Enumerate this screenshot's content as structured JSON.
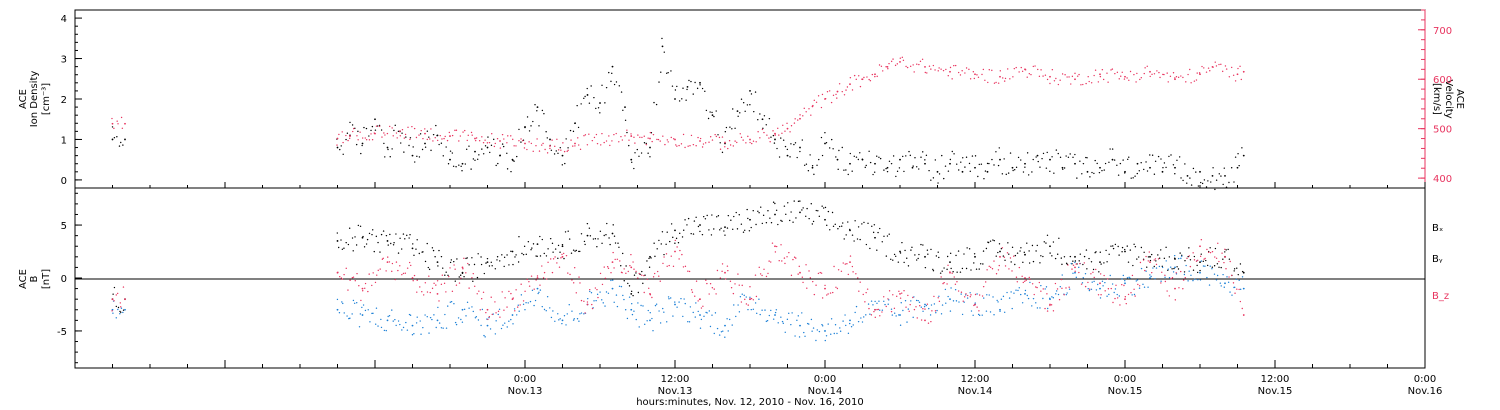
{
  "chart_data": [
    {
      "type": "scatter",
      "panel": "top",
      "ylabel": [
        "ACE",
        "Ion Density",
        "[cm⁻³]"
      ],
      "y2label": [
        "ACE",
        "Velocity",
        "[km/s]"
      ],
      "ylim": [
        -0.2,
        4.2
      ],
      "yticks": [
        "0",
        "1",
        "2",
        "3",
        "4"
      ],
      "y2lim": [
        380,
        740
      ],
      "y2ticks": [
        "400",
        "500",
        "600",
        "700"
      ],
      "colors": {
        "density": "#000000",
        "velocity": "#e8345f"
      },
      "series": [
        {
          "key": "density",
          "color": "#000000",
          "x": [
            -33,
            -32,
            -15,
            -14,
            -13,
            -12,
            -11,
            -10,
            -9,
            -8,
            -7,
            -6,
            -5,
            -4,
            -3,
            -2,
            -1,
            0,
            1,
            2,
            3,
            4,
            5,
            6,
            7,
            8,
            8.5,
            10,
            11,
            12,
            13,
            14,
            15,
            16,
            17,
            18,
            19,
            20,
            21,
            22,
            23,
            24,
            25,
            26,
            27,
            28,
            29,
            30,
            31,
            32,
            33,
            34,
            35,
            36,
            37,
            38,
            39,
            40,
            41,
            42,
            43,
            44,
            45,
            46,
            47,
            48,
            49,
            50,
            51,
            52,
            53,
            54,
            55,
            56,
            57,
            57.5
          ],
          "y": [
            1.0,
            1.0,
            0.8,
            1.1,
            0.9,
            1.5,
            0.8,
            1.2,
            0.6,
            0.9,
            1.1,
            0.5,
            0.4,
            0.7,
            0.8,
            0.6,
            0.5,
            1.3,
            1.8,
            1.0,
            0.6,
            1.4,
            2.1,
            1.9,
            2.8,
            1.8,
            0.5,
            0.8,
            3.3,
            2.0,
            2.3,
            2.4,
            1.6,
            0.9,
            1.7,
            2.2,
            1.5,
            1.0,
            0.6,
            0.8,
            0.3,
            0.9,
            0.5,
            0.4,
            0.5,
            0.4,
            0.3,
            0.5,
            0.3,
            0.4,
            0.2,
            0.4,
            0.2,
            0.3,
            0.2,
            0.5,
            0.3,
            0.4,
            0.6,
            0.5,
            0.3,
            0.4,
            0.2,
            0.3,
            0.5,
            0.2,
            0.4,
            0.3,
            0.2,
            0.3,
            0.1,
            0.2,
            0.1,
            0.1,
            0.3,
            0.6
          ]
        },
        {
          "key": "velocity",
          "color": "#e8345f",
          "x": [
            -33,
            -32,
            -15,
            -14,
            -12,
            -10,
            -8,
            -6,
            -4,
            -2,
            0,
            2,
            4,
            8.5,
            10,
            12,
            14,
            16,
            18,
            20,
            21,
            22,
            23,
            24,
            25,
            26,
            27,
            28,
            29,
            30,
            32,
            34,
            36,
            38,
            40,
            42,
            44,
            46,
            48,
            50,
            52,
            54,
            55,
            57,
            57.5
          ],
          "y": [
            510,
            510,
            480,
            485,
            490,
            495,
            490,
            485,
            480,
            475,
            470,
            465,
            470,
            485,
            480,
            478,
            475,
            472,
            478,
            490,
            500,
            520,
            545,
            560,
            575,
            590,
            600,
            610,
            625,
            635,
            625,
            615,
            610,
            605,
            620,
            605,
            600,
            610,
            605,
            615,
            600,
            610,
            625,
            610,
            615
          ]
        }
      ]
    },
    {
      "type": "scatter",
      "panel": "bottom",
      "ylabel": [
        "ACE",
        "B",
        "[nT]"
      ],
      "ylim": [
        -8.5,
        8.5
      ],
      "yticks": [
        "-5",
        "0",
        "5"
      ],
      "legend": [
        "Bₓ",
        "Bᵧ",
        "B_z"
      ],
      "legend_position": "right",
      "colors": {
        "bx": "#000000",
        "by": "#1a7fd6",
        "bz": "#e8345f"
      },
      "series": [
        {
          "key": "bx",
          "color": "#000000",
          "x": [
            -33,
            -32,
            -15,
            -13,
            -11,
            -9,
            -7,
            -5,
            -3,
            -1,
            1,
            3,
            5,
            7,
            8.5,
            10,
            12,
            14,
            16,
            18,
            20,
            22,
            24,
            26,
            28,
            30,
            32,
            34,
            36,
            38,
            40,
            42,
            44,
            46,
            48,
            50,
            52,
            54,
            56,
            57.5
          ],
          "y": [
            -2,
            -2,
            3.5,
            3.8,
            3.5,
            2.8,
            1.5,
            0.5,
            1.5,
            2.5,
            3.2,
            3.0,
            4.0,
            4.2,
            -1.5,
            2.0,
            4.5,
            5.0,
            4.8,
            5.5,
            6.0,
            6.2,
            5.5,
            4.5,
            3.8,
            2.5,
            2.0,
            1.5,
            2.0,
            2.5,
            2.2,
            3.0,
            2.0,
            1.5,
            2.5,
            2.0,
            1.8,
            1.5,
            2.0,
            0.5
          ]
        },
        {
          "key": "by",
          "color": "#1a7fd6",
          "x": [
            -33,
            -32,
            -15,
            -13,
            -11,
            -9,
            -7,
            -5,
            -3,
            -1,
            1,
            3,
            5,
            7,
            8.5,
            10,
            12,
            14,
            16,
            18,
            20,
            22,
            24,
            26,
            28,
            30,
            32,
            34,
            36,
            38,
            40,
            42,
            44,
            46,
            48,
            50,
            52,
            54,
            56,
            57.5
          ],
          "y": [
            -3,
            -3,
            -3.0,
            -3.5,
            -4.0,
            -4.5,
            -4.0,
            -3.0,
            -4.5,
            -3.5,
            -1.0,
            -4.0,
            -2.5,
            -1.0,
            -3.0,
            -4.0,
            -2.5,
            -3.5,
            -4.5,
            -2.0,
            -3.5,
            -4.5,
            -5.0,
            -4.0,
            -3.0,
            -3.5,
            -2.5,
            -2.0,
            -2.5,
            -3.0,
            -1.5,
            -2.0,
            0.5,
            -1.0,
            -0.5,
            0.0,
            1.0,
            0.5,
            -0.5,
            -1.0
          ]
        },
        {
          "key": "bz",
          "color": "#e8345f",
          "x": [
            -33,
            -32,
            -15,
            -13,
            -11,
            -9,
            -7,
            -5,
            -3,
            -1,
            1,
            3,
            5,
            7,
            8.5,
            10,
            12,
            14,
            16,
            18,
            20,
            22,
            24,
            26,
            28,
            30,
            32,
            34,
            36,
            38,
            40,
            42,
            44,
            46,
            48,
            50,
            52,
            54,
            56,
            57.5
          ],
          "y": [
            -2,
            -2,
            0.5,
            -1.0,
            1.5,
            0.0,
            -1.5,
            1.0,
            -3.0,
            -2.0,
            0.0,
            2.0,
            -2.5,
            1.5,
            1.0,
            -1.5,
            2.5,
            -2.0,
            0.5,
            -2.0,
            3.0,
            0.5,
            -1.0,
            1.5,
            -3.0,
            -1.5,
            -4.0,
            0.5,
            -2.5,
            2.0,
            0.0,
            -2.5,
            1.0,
            -0.5,
            -2.0,
            1.5,
            -1.0,
            3.0,
            2.0,
            -3.5
          ]
        }
      ]
    }
  ],
  "x_axis": {
    "xlim": [
      -36,
      72
    ],
    "tick_hours": [
      0,
      12,
      24,
      36,
      48,
      60,
      72
    ],
    "tick_labels_top": [
      "0:00",
      "12:00",
      "0:00",
      "12:00",
      "0:00",
      "12:00",
      "0:00"
    ],
    "tick_labels_bottom": [
      "Nov.13",
      "Nov.13",
      "Nov.14",
      "Nov.14",
      "Nov.15",
      "Nov.15",
      "Nov.16"
    ],
    "title": "hours:minutes, Nov. 12, 2010 - Nov. 16, 2010"
  }
}
